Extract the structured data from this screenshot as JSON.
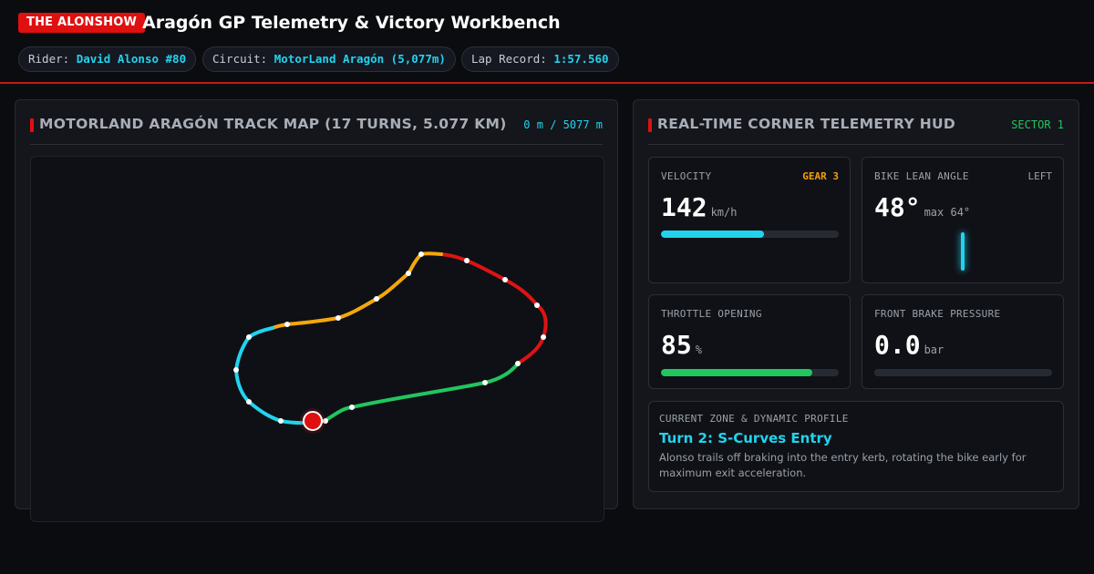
{
  "header": {
    "brand": "THE ALONSHOW",
    "title": "Aragón GP Telemetry & Victory Workbench",
    "pills": [
      {
        "label": "Rider:",
        "value": "David Alonso #80"
      },
      {
        "label": "Circuit:",
        "value": "MotorLand Aragón (5,077m)"
      },
      {
        "label": "Lap Record:",
        "value": "1:57.560"
      }
    ]
  },
  "track_panel": {
    "title": "MOTORLAND ARAGÓN TRACK MAP (17 TURNS, 5.077 KM)",
    "distance": "0 m / 5077 m"
  },
  "telemetry_panel": {
    "title": "REAL-TIME CORNER TELEMETRY HUD",
    "sector": "SECTOR 1",
    "velocity": {
      "label": "VELOCITY",
      "gear": "GEAR 3",
      "value": "142",
      "unit": "km/h",
      "fill_percent": 58
    },
    "lean": {
      "label": "BIKE LEAN ANGLE",
      "direction": "LEFT",
      "value": "48°",
      "max": "max 64°"
    },
    "throttle": {
      "label": "THROTTLE OPENING",
      "value": "85",
      "unit": "%",
      "fill_percent": 85
    },
    "brake": {
      "label": "FRONT BRAKE PRESSURE",
      "value": "0.0",
      "unit": "bar",
      "fill_percent": 0
    },
    "zone": {
      "label": "CURRENT ZONE & DYNAMIC PROFILE",
      "title": "Turn 2: S-Curves Entry",
      "description": "Alonso trails off braking into the entry kerb, rotating the bike early for maximum exit acceleration."
    }
  },
  "colors": {
    "accent": "#e01010",
    "cyan": "#22d3ee",
    "green": "#22c55e",
    "amber": "#f59e0b",
    "red": "#dc1414"
  }
}
